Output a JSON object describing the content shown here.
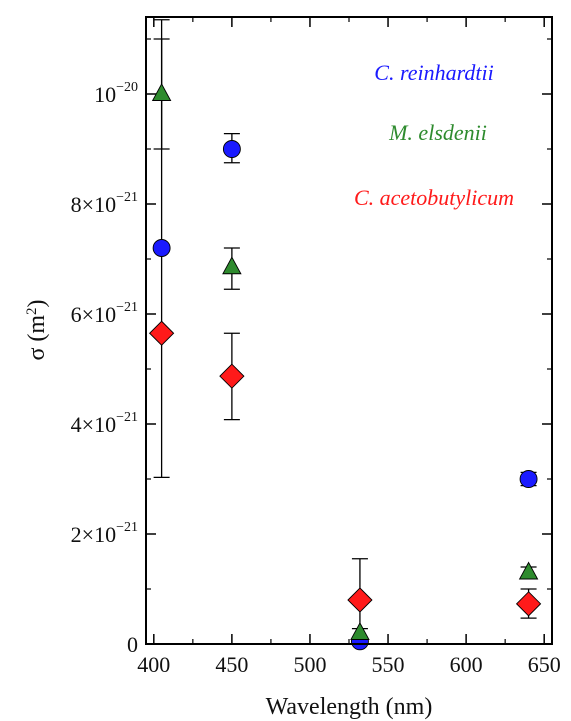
{
  "chart_data": {
    "type": "scatter",
    "xlabel": "Wavelength (nm)",
    "ylabel": {
      "base": "σ (m",
      "sup": "2",
      "close": ")"
    },
    "xlim": [
      395,
      655
    ],
    "ylim": [
      0,
      11.4
    ],
    "y_unit_exponent": -21,
    "x_ticks": [
      "400",
      "450",
      "500",
      "550",
      "600",
      "650"
    ],
    "x_tick_values": [
      400,
      450,
      500,
      550,
      600,
      650
    ],
    "y_ticks": [
      {
        "value": 0,
        "mantissa": "0",
        "exp": ""
      },
      {
        "value": 2,
        "mantissa": "2×10",
        "exp": "−21"
      },
      {
        "value": 4,
        "mantissa": "4×10",
        "exp": "−21"
      },
      {
        "value": 6,
        "mantissa": "6×10",
        "exp": "−21"
      },
      {
        "value": 8,
        "mantissa": "8×10",
        "exp": "−21"
      },
      {
        "value": 10,
        "mantissa": "10",
        "exp": "−20"
      }
    ],
    "grid": false,
    "legend_position": "top-right",
    "series": [
      {
        "name": "C. reinhardtii",
        "color": "#1a1aff",
        "marker": "circle",
        "points": [
          {
            "x": 405,
            "y": 7.2,
            "err": [
              7.2,
              7.2
            ]
          },
          {
            "x": 450,
            "y": 9.0,
            "err": [
              8.75,
              9.28
            ]
          },
          {
            "x": 532,
            "y": 0.05,
            "err": [
              0.0,
              0.12
            ]
          },
          {
            "x": 640,
            "y": 3.0,
            "err": [
              2.88,
              3.12
            ]
          }
        ]
      },
      {
        "name": "M. elsdenii",
        "color": "#2e8b2e",
        "marker": "triangle",
        "points": [
          {
            "x": 405,
            "y": 10.0,
            "err": [
              9.0,
              11.0
            ]
          },
          {
            "x": 450,
            "y": 6.85,
            "err": [
              6.45,
              7.2
            ]
          },
          {
            "x": 532,
            "y": 0.2,
            "err": [
              0.08,
              0.28
            ]
          },
          {
            "x": 640,
            "y": 1.3,
            "err": [
              1.22,
              1.4
            ]
          }
        ]
      },
      {
        "name": "C. acetobutylicum",
        "color": "#ff1a1a",
        "marker": "diamond",
        "points": [
          {
            "x": 405,
            "y": 5.65,
            "err": [
              3.03,
              11.35
            ]
          },
          {
            "x": 450,
            "y": 4.87,
            "err": [
              4.08,
              5.65
            ]
          },
          {
            "x": 532,
            "y": 0.8,
            "err": [
              0.0,
              1.55
            ]
          },
          {
            "x": 640,
            "y": 0.73,
            "err": [
              0.47,
              1.0
            ]
          }
        ]
      }
    ]
  }
}
